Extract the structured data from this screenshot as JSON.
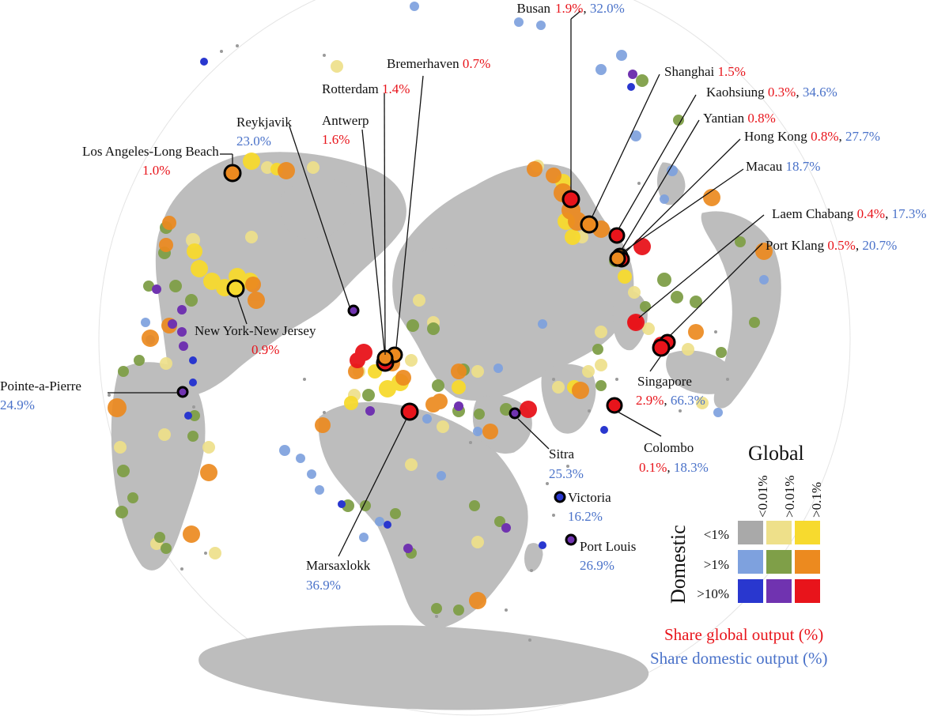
{
  "colors": {
    "land": "#bdbdbd",
    "global_share": "#e8141b",
    "domestic_share": "#4a72c9",
    "leader_line": "#111111"
  },
  "legend": {
    "title": "Global",
    "axis_label": "Domestic",
    "columns": [
      "<0.01%",
      ">0.01%",
      ">0.1%"
    ],
    "rows": [
      {
        "label": "<1%",
        "colors": [
          "#a9a9a9",
          "#eee08a",
          "#f7da2e"
        ]
      },
      {
        "label": ">1%",
        "colors": [
          "#7ea1de",
          "#7f9f48",
          "#ec8a1f"
        ]
      },
      {
        "label": ">10%",
        "colors": [
          "#2937cf",
          "#7033b0",
          "#e8141b"
        ]
      }
    ],
    "note_global": "Share global output (%)",
    "note_domestic": "Share domestic output (%)"
  },
  "ports": [
    {
      "name": "Busan",
      "global": "1.9%",
      "domestic": "32.0%",
      "category": "high-high"
    },
    {
      "name": "Shanghai",
      "global": "1.5%",
      "category": "high-mid"
    },
    {
      "name": "Kaohsiung",
      "global": "0.3%",
      "domestic": "34.6%",
      "category": "high-high"
    },
    {
      "name": "Yantian",
      "global": "0.8%",
      "category": "high-mid"
    },
    {
      "name": "Hong Kong",
      "global": "0.8%",
      "domestic": "27.7%",
      "category": "high-high"
    },
    {
      "name": "Macau",
      "domestic": "18.7%",
      "category": "high-mid"
    },
    {
      "name": "Laem Chabang",
      "global": "0.4%",
      "domestic": "17.3%",
      "category": "high-high"
    },
    {
      "name": "Port Klang",
      "global": "0.5%",
      "domestic": "20.7%",
      "category": "high-high"
    },
    {
      "name": "Singapore",
      "global": "2.9%",
      "domestic": "66.3%",
      "category": "high-high"
    },
    {
      "name": "Colombo",
      "global": "0.1%",
      "domestic": "18.3%",
      "category": "high-high"
    },
    {
      "name": "Sitra",
      "domestic": "25.3%",
      "category": "mid-high"
    },
    {
      "name": "Victoria",
      "domestic": "16.2%",
      "category": "low-high"
    },
    {
      "name": "Port Louis",
      "domestic": "26.9%",
      "category": "mid-high"
    },
    {
      "name": "Marsaxlokk",
      "domestic": "36.9%",
      "category": "high-high"
    },
    {
      "name": "Bremerhaven",
      "global": "0.7%",
      "category": "high-mid"
    },
    {
      "name": "Rotterdam",
      "global": "1.4%",
      "category": "high-high"
    },
    {
      "name": "Antwerp",
      "global": "1.6%",
      "category": "high-mid"
    },
    {
      "name": "Reykjavik",
      "domestic": "23.0%",
      "category": "mid-high"
    },
    {
      "name": "Los Angeles-Long Beach",
      "global": "1.0%",
      "category": "high-mid"
    },
    {
      "name": "New York-New Jersey",
      "global": "0.9%",
      "category": "high-low"
    },
    {
      "name": "Pointe-a-Pierre",
      "domestic": "24.9%",
      "category": "low-high"
    }
  ]
}
